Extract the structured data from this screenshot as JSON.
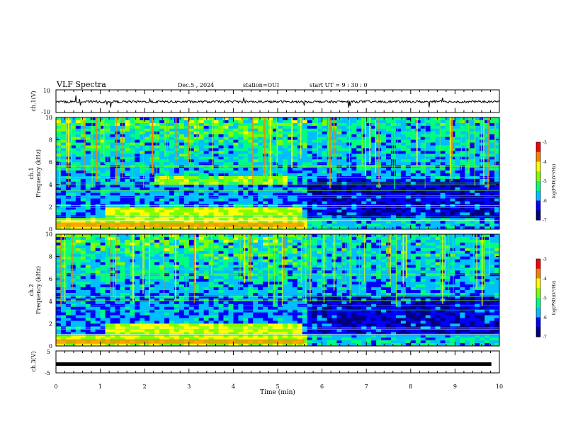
{
  "header": {
    "title": "VLF Spectra",
    "date": "Dec.5 , 2024",
    "station": "station=OUI",
    "start": "start  UT =   9 : 30 : 0"
  },
  "colors": {
    "spectrogram_background": "#0a1aa0",
    "waveform": "#000000",
    "colormap": [
      "#000080",
      "#0000ff",
      "#00bfff",
      "#00ff80",
      "#7fff00",
      "#ffff00",
      "#ff8000",
      "#ff0000",
      "#ffffff"
    ]
  },
  "chart_data": [
    {
      "type": "line",
      "name": "ch1-waveform",
      "ylabel": "ch.1(V)",
      "ylim": [
        -10,
        10
      ],
      "y_ticks": [
        "10",
        "-10"
      ],
      "x": [
        0,
        10
      ],
      "description_values": {
        "baseline": -0.5
      }
    },
    {
      "type": "heatmap",
      "name": "ch1-spectrogram",
      "ylabel_line1": "ch.1",
      "ylabel_line2": "Frequency (kHz)",
      "ylim": [
        0,
        10
      ],
      "y_ticks": [
        "0",
        "2",
        "4",
        "6",
        "8",
        "10"
      ],
      "xlim": [
        0,
        10
      ],
      "colorbar": {
        "label": "log(PSD)(V²/Hz)",
        "range": [
          -7,
          -3
        ],
        "ticks": [
          "-3",
          "-4",
          "-5",
          "-6",
          "-7"
        ]
      }
    },
    {
      "type": "heatmap",
      "name": "ch2-spectrogram",
      "ylabel_line1": "ch.2",
      "ylabel_line2": "Frequency (kHz)",
      "ylim": [
        0,
        10
      ],
      "y_ticks": [
        "0",
        "2",
        "4",
        "6",
        "8",
        "10"
      ],
      "xlim": [
        0,
        10
      ],
      "colorbar": {
        "label": "log(PSD)(V²/Hz)",
        "range": [
          -7,
          -3
        ],
        "ticks": [
          "-3",
          "-4",
          "-5",
          "-6",
          "-7"
        ]
      }
    },
    {
      "type": "line",
      "name": "ch3-waveform",
      "ylabel": "ch.3(V)",
      "ylim": [
        -5,
        5
      ],
      "y_ticks": [
        "5",
        "-5"
      ],
      "x": [
        0,
        10
      ],
      "description_values": {
        "baseline": -1
      }
    }
  ],
  "x_axis": {
    "label": "Time (min)",
    "ticks": [
      "0",
      "1",
      "2",
      "3",
      "4",
      "5",
      "6",
      "7",
      "8",
      "9",
      "10"
    ],
    "xlim": [
      0,
      10
    ]
  }
}
